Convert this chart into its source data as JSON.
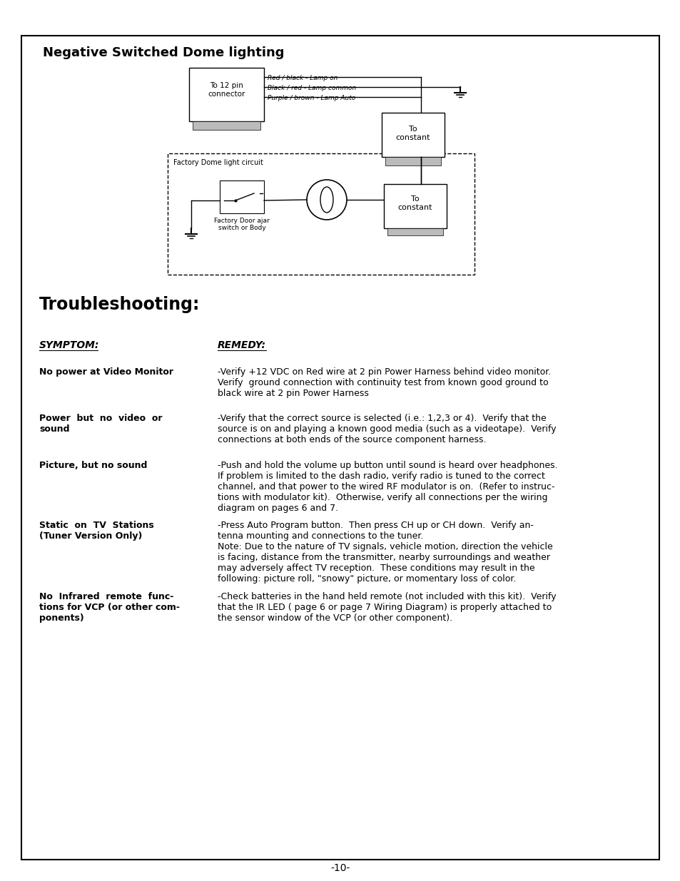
{
  "page_title": "Negative Switched Dome lighting",
  "section_title": "Troubleshooting:",
  "symptom_header": "SYMPTOM:",
  "remedy_header": "REMEDY:",
  "troubleshooting": [
    {
      "symptom": "No power at Video Monitor",
      "remedy": "-Verify +12 VDC on Red wire at 2 pin Power Harness behind video monitor.\nVerify  ground connection with continuity test from known good ground to\nblack wire at 2 pin Power Harness"
    },
    {
      "symptom": "Power  but  no  video  or\nsound",
      "remedy": "-Verify that the correct source is selected (i.e.: 1,2,3 or 4).  Verify that the\nsource is on and playing a known good media (such as a videotape).  Verify\nconnections at both ends of the source component harness."
    },
    {
      "symptom": "Picture, but no sound",
      "remedy": "-Push and hold the volume up button until sound is heard over headphones.\nIf problem is limited to the dash radio, verify radio is tuned to the correct\nchannel, and that power to the wired RF modulator is on.  (Refer to instruc-\ntions with modulator kit).  Otherwise, verify all connections per the wiring\ndiagram on pages 6 and 7."
    },
    {
      "symptom": "Static  on  TV  Stations\n(Tuner Version Only)",
      "remedy": "-Press Auto Program button.  Then press CH up or CH down.  Verify an-\ntenna mounting and connections to the tuner.\nNote: Due to the nature of TV signals, vehicle motion, direction the vehicle\nis facing, distance from the transmitter, nearby surroundings and weather\nmay adversely affect TV reception.  These conditions may result in the\nfollowing: picture roll, \"snowy\" picture, or momentary loss of color."
    },
    {
      "symptom": "No  Infrared  remote  func-\ntions for VCP (or other com-\nponents)",
      "remedy": "-Check batteries in the hand held remote (not included with this kit).  Verify\nthat the IR LED ( page 6 or page 7 Wiring Diagram) is properly attached to\nthe sensor window of the VCP (or other component)."
    }
  ],
  "page_number": "-10-",
  "background_color": "#ffffff",
  "border_color": "#000000",
  "text_color": "#000000"
}
